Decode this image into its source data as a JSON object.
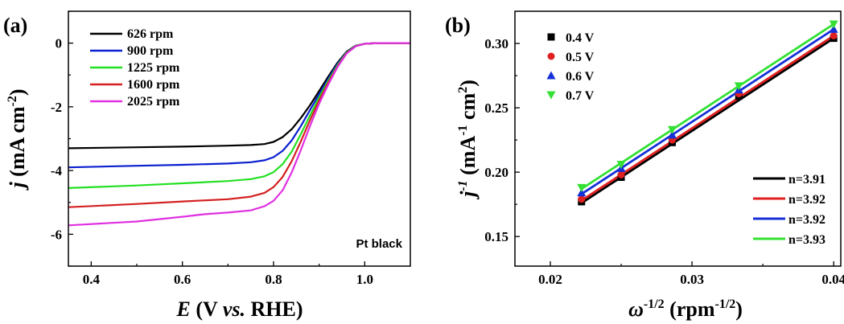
{
  "chart_data": [
    {
      "type": "line",
      "panel_label": "(a)",
      "xlabel": {
        "italic": "E",
        "pre": " (V ",
        "italic2": "vs.",
        "post": " RHE)"
      },
      "ylabel": {
        "italic": "j",
        "pre": " (mA cm",
        "sup": "-2",
        "post": ")"
      },
      "xlim": [
        0.35,
        1.1
      ],
      "ylim": [
        -7.0,
        1.0
      ],
      "xticks": [
        "0.4",
        "0.6",
        "0.8",
        "1.0"
      ],
      "xtick_values": [
        0.4,
        0.6,
        0.8,
        1.0
      ],
      "yticks": [
        "0",
        "-2",
        "-4",
        "-6"
      ],
      "ytick_values": [
        0,
        -2,
        -4,
        -6
      ],
      "annotation": "Pt black",
      "legend_position": "top-left",
      "series": [
        {
          "name": "626 rpm",
          "color": "#000000",
          "x": [
            0.35,
            0.5,
            0.6,
            0.7,
            0.75,
            0.78,
            0.8,
            0.82,
            0.84,
            0.86,
            0.88,
            0.9,
            0.92,
            0.94,
            0.96,
            0.98,
            1.0,
            1.03,
            1.1
          ],
          "y": [
            -3.3,
            -3.27,
            -3.25,
            -3.22,
            -3.2,
            -3.17,
            -3.1,
            -2.95,
            -2.7,
            -2.35,
            -1.95,
            -1.5,
            -1.05,
            -0.62,
            -0.27,
            -0.08,
            -0.02,
            0.0,
            0.0
          ]
        },
        {
          "name": "900 rpm",
          "color": "#0a1fd0",
          "x": [
            0.35,
            0.5,
            0.6,
            0.7,
            0.75,
            0.78,
            0.8,
            0.82,
            0.84,
            0.86,
            0.88,
            0.9,
            0.92,
            0.94,
            0.96,
            0.98,
            1.0,
            1.03,
            1.1
          ],
          "y": [
            -3.9,
            -3.85,
            -3.82,
            -3.78,
            -3.74,
            -3.68,
            -3.58,
            -3.38,
            -3.05,
            -2.6,
            -2.1,
            -1.6,
            -1.12,
            -0.66,
            -0.29,
            -0.09,
            -0.02,
            0.0,
            0.0
          ]
        },
        {
          "name": "1225 rpm",
          "color": "#22e022",
          "x": [
            0.35,
            0.5,
            0.6,
            0.7,
            0.75,
            0.78,
            0.8,
            0.82,
            0.84,
            0.86,
            0.88,
            0.9,
            0.92,
            0.94,
            0.96,
            0.98,
            1.0,
            1.03,
            1.1
          ],
          "y": [
            -4.55,
            -4.47,
            -4.4,
            -4.33,
            -4.27,
            -4.18,
            -4.05,
            -3.8,
            -3.4,
            -2.85,
            -2.27,
            -1.7,
            -1.18,
            -0.7,
            -0.3,
            -0.09,
            -0.02,
            0.0,
            0.0
          ]
        },
        {
          "name": "1600 rpm",
          "color": "#d42020",
          "x": [
            0.35,
            0.5,
            0.6,
            0.7,
            0.75,
            0.78,
            0.8,
            0.82,
            0.84,
            0.86,
            0.88,
            0.9,
            0.92,
            0.94,
            0.96,
            0.98,
            1.0,
            1.03,
            1.1
          ],
          "y": [
            -5.15,
            -5.05,
            -4.97,
            -4.9,
            -4.82,
            -4.7,
            -4.52,
            -4.2,
            -3.7,
            -3.08,
            -2.42,
            -1.8,
            -1.24,
            -0.74,
            -0.32,
            -0.1,
            -0.02,
            0.0,
            0.0
          ]
        },
        {
          "name": "2025 rpm",
          "color": "#e030e0",
          "x": [
            0.35,
            0.5,
            0.6,
            0.65,
            0.7,
            0.75,
            0.78,
            0.8,
            0.82,
            0.84,
            0.86,
            0.88,
            0.9,
            0.92,
            0.94,
            0.96,
            0.98,
            1.0,
            1.03,
            1.1
          ],
          "y": [
            -5.72,
            -5.6,
            -5.45,
            -5.37,
            -5.32,
            -5.25,
            -5.12,
            -4.95,
            -4.62,
            -4.05,
            -3.35,
            -2.6,
            -1.9,
            -1.3,
            -0.76,
            -0.33,
            -0.1,
            -0.02,
            0.0,
            0.0
          ]
        }
      ]
    },
    {
      "type": "scatter",
      "panel_label": "(b)",
      "xlabel": {
        "italic": "ω",
        "sup": "-1/2",
        "post": " (rpm",
        "sup2": "-1/2",
        "post2": ")"
      },
      "ylabel": {
        "italic": "j",
        "sup": "-1",
        "post": " (mA",
        "sup2": "-1",
        "post2": " cm",
        "sup3": "2",
        "post3": ")"
      },
      "xlim": [
        0.0175,
        0.0405
      ],
      "ylim": [
        0.127,
        0.325
      ],
      "xticks": [
        "0.02",
        "0.03",
        "0.04"
      ],
      "xtick_values": [
        0.02,
        0.03,
        0.04
      ],
      "yticks": [
        "0.15",
        "0.20",
        "0.25",
        "0.30"
      ],
      "ytick_values": [
        0.15,
        0.2,
        0.25,
        0.3
      ],
      "x": [
        0.0222,
        0.025,
        0.0286,
        0.0333,
        0.04
      ],
      "legend_position": "top-left",
      "fit_legend_position": "bottom-right",
      "series": [
        {
          "name": "0.4 V",
          "marker": "square",
          "color": "#000000",
          "values": [
            0.177,
            0.196,
            0.223,
            0.259,
            0.304
          ]
        },
        {
          "name": "0.5 V",
          "marker": "circle",
          "color": "#e02020",
          "values": [
            0.179,
            0.198,
            0.225,
            0.261,
            0.306
          ]
        },
        {
          "name": "0.6 V",
          "marker": "triangle-up",
          "color": "#1530d8",
          "values": [
            0.184,
            0.203,
            0.229,
            0.264,
            0.311
          ]
        },
        {
          "name": "0.7 V",
          "marker": "triangle-down",
          "color": "#33e033",
          "values": [
            0.188,
            0.206,
            0.233,
            0.267,
            0.315
          ]
        }
      ],
      "fits": [
        {
          "label": "n=3.91",
          "color": "#000000",
          "y_start": 0.176,
          "y_end": 0.304
        },
        {
          "label": "n=3.92",
          "color": "#e02020",
          "y_start": 0.178,
          "y_end": 0.306
        },
        {
          "label": "n=3.92",
          "color": "#1530d8",
          "y_start": 0.183,
          "y_end": 0.311
        },
        {
          "label": "n=3.93",
          "color": "#33e033",
          "y_start": 0.187,
          "y_end": 0.315
        }
      ]
    }
  ]
}
